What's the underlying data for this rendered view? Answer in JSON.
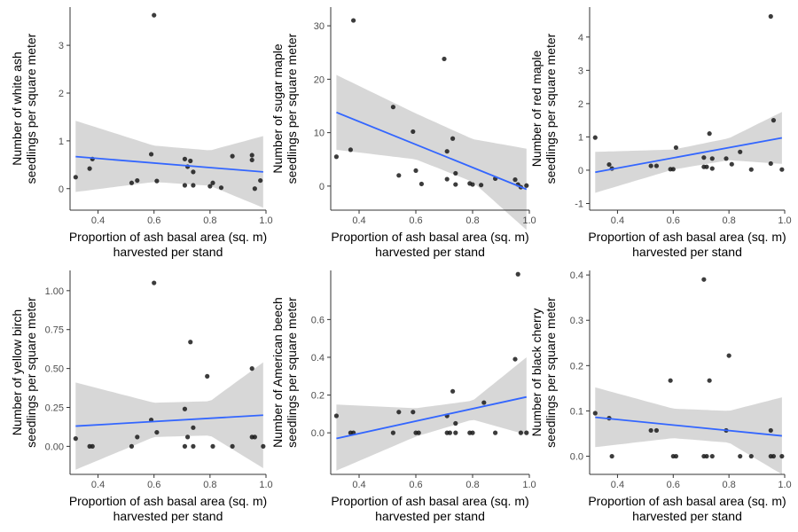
{
  "colors": {
    "point": "#1a1a1a",
    "line": "#3366ff",
    "band": "#d3d3d3",
    "axis": "#333333"
  },
  "shared": {
    "xlabel_line1": "Proportion of ash basal area (sq. m)",
    "xlabel_line2": "harvested per stand",
    "ylabel_line2": "seedlings per square meter"
  },
  "chart_data": [
    {
      "type": "scatter",
      "ylabel": "Number of white ash",
      "xlim": [
        0.3,
        1.0
      ],
      "ylim": [
        -0.45,
        3.8
      ],
      "xticks": [
        0.4,
        0.6,
        0.8,
        1.0
      ],
      "xtick_labels": [
        "0.4",
        "0.6",
        "0.8",
        "1.0"
      ],
      "yticks": [
        0,
        1,
        2,
        3
      ],
      "ytick_labels": [
        "0",
        "1",
        "2",
        "3"
      ],
      "points": [
        [
          0.32,
          0.24
        ],
        [
          0.37,
          0.42
        ],
        [
          0.38,
          0.62
        ],
        [
          0.52,
          0.12
        ],
        [
          0.54,
          0.17
        ],
        [
          0.59,
          0.72
        ],
        [
          0.6,
          3.63
        ],
        [
          0.61,
          0.16
        ],
        [
          0.71,
          0.62
        ],
        [
          0.71,
          0.07
        ],
        [
          0.72,
          0.46
        ],
        [
          0.73,
          0.58
        ],
        [
          0.74,
          0.35
        ],
        [
          0.74,
          0.07
        ],
        [
          0.8,
          0.05
        ],
        [
          0.81,
          0.12
        ],
        [
          0.84,
          0.02
        ],
        [
          0.88,
          0.68
        ],
        [
          0.95,
          0.7
        ],
        [
          0.95,
          0.6
        ],
        [
          0.96,
          0.0
        ],
        [
          0.98,
          0.17
        ]
      ],
      "fit": {
        "x": [
          0.32,
          0.99
        ],
        "y": [
          0.67,
          0.35
        ]
      },
      "band": {
        "x": [
          0.32,
          0.6,
          0.8,
          0.99
        ],
        "upper": [
          1.42,
          0.9,
          0.8,
          1.1
        ],
        "lower": [
          -0.07,
          0.14,
          0.06,
          -0.4
        ]
      }
    },
    {
      "type": "scatter",
      "ylabel": "Number of sugar maple",
      "xlim": [
        0.3,
        1.0
      ],
      "ylim": [
        -4.5,
        33.5
      ],
      "xticks": [
        0.4,
        0.6,
        0.8,
        1.0
      ],
      "xtick_labels": [
        "0.4",
        "0.6",
        "0.8",
        "1.0"
      ],
      "yticks": [
        0,
        10,
        20,
        30
      ],
      "ytick_labels": [
        "0",
        "10",
        "20",
        "30"
      ],
      "points": [
        [
          0.32,
          5.5
        ],
        [
          0.37,
          6.8
        ],
        [
          0.38,
          31.0
        ],
        [
          0.52,
          14.8
        ],
        [
          0.54,
          2.0
        ],
        [
          0.59,
          10.2
        ],
        [
          0.6,
          2.9
        ],
        [
          0.62,
          0.4
        ],
        [
          0.7,
          23.8
        ],
        [
          0.71,
          1.3
        ],
        [
          0.71,
          6.5
        ],
        [
          0.73,
          8.9
        ],
        [
          0.74,
          2.4
        ],
        [
          0.74,
          0.3
        ],
        [
          0.79,
          0.5
        ],
        [
          0.8,
          0.3
        ],
        [
          0.83,
          0.2
        ],
        [
          0.88,
          1.4
        ],
        [
          0.95,
          1.2
        ],
        [
          0.96,
          0.3
        ],
        [
          0.97,
          -0.2
        ],
        [
          0.99,
          0.1
        ]
      ],
      "fit": {
        "x": [
          0.32,
          0.99
        ],
        "y": [
          13.8,
          -0.6
        ]
      },
      "band": {
        "x": [
          0.32,
          0.6,
          0.8,
          0.99
        ],
        "upper": [
          20.8,
          13.6,
          8.8,
          7.0
        ],
        "lower": [
          6.8,
          5.0,
          0.8,
          -8.2
        ]
      }
    },
    {
      "type": "scatter",
      "ylabel": "Number of red maple",
      "xlim": [
        0.3,
        1.0
      ],
      "ylim": [
        -1.2,
        4.9
      ],
      "xticks": [
        0.4,
        0.6,
        0.8,
        1.0
      ],
      "xtick_labels": [
        "0.4",
        "0.6",
        "0.8",
        "1.0"
      ],
      "yticks": [
        -1,
        0,
        1,
        2,
        3,
        4
      ],
      "ytick_labels": [
        "-1",
        "0",
        "1",
        "2",
        "3",
        "4"
      ],
      "points": [
        [
          0.32,
          0.98
        ],
        [
          0.37,
          0.17
        ],
        [
          0.38,
          0.05
        ],
        [
          0.52,
          0.13
        ],
        [
          0.54,
          0.13
        ],
        [
          0.59,
          0.03
        ],
        [
          0.6,
          0.03
        ],
        [
          0.61,
          0.68
        ],
        [
          0.71,
          0.38
        ],
        [
          0.71,
          0.1
        ],
        [
          0.72,
          0.1
        ],
        [
          0.73,
          1.1
        ],
        [
          0.74,
          0.05
        ],
        [
          0.74,
          0.35
        ],
        [
          0.79,
          0.35
        ],
        [
          0.81,
          0.18
        ],
        [
          0.84,
          0.55
        ],
        [
          0.88,
          0.02
        ],
        [
          0.95,
          4.62
        ],
        [
          0.95,
          0.2
        ],
        [
          0.96,
          1.5
        ],
        [
          0.99,
          0.02
        ]
      ],
      "fit": {
        "x": [
          0.32,
          0.99
        ],
        "y": [
          -0.06,
          0.97
        ]
      },
      "band": {
        "x": [
          0.32,
          0.6,
          0.8,
          0.99
        ],
        "upper": [
          0.55,
          0.62,
          0.96,
          1.75
        ],
        "lower": [
          -0.68,
          0.02,
          0.3,
          0.19
        ]
      }
    },
    {
      "type": "scatter",
      "ylabel": "Number of yellow birch",
      "xlim": [
        0.3,
        1.0
      ],
      "ylim": [
        -0.18,
        1.13
      ],
      "xticks": [
        0.4,
        0.6,
        0.8,
        1.0
      ],
      "xtick_labels": [
        "0.4",
        "0.6",
        "0.8",
        "1.0"
      ],
      "yticks": [
        0,
        0.25,
        0.5,
        0.75,
        1.0
      ],
      "ytick_labels": [
        "0.00",
        "0.25",
        "0.50",
        "0.75",
        "1.00"
      ],
      "points": [
        [
          0.32,
          0.05
        ],
        [
          0.37,
          0.0
        ],
        [
          0.38,
          0.0
        ],
        [
          0.52,
          0.0
        ],
        [
          0.54,
          0.06
        ],
        [
          0.59,
          0.17
        ],
        [
          0.6,
          1.05
        ],
        [
          0.61,
          0.09
        ],
        [
          0.71,
          0.24
        ],
        [
          0.71,
          0.0
        ],
        [
          0.72,
          0.06
        ],
        [
          0.73,
          0.67
        ],
        [
          0.74,
          0.0
        ],
        [
          0.74,
          0.12
        ],
        [
          0.79,
          0.45
        ],
        [
          0.81,
          0.0
        ],
        [
          0.88,
          0.0
        ],
        [
          0.95,
          0.5
        ],
        [
          0.95,
          0.06
        ],
        [
          0.96,
          0.06
        ],
        [
          0.99,
          0.0
        ]
      ],
      "fit": {
        "x": [
          0.32,
          0.99
        ],
        "y": [
          0.13,
          0.2
        ]
      },
      "band": {
        "x": [
          0.32,
          0.6,
          0.8,
          0.99
        ],
        "upper": [
          0.41,
          0.28,
          0.29,
          0.54
        ],
        "lower": [
          -0.15,
          0.06,
          0.07,
          -0.14
        ]
      }
    },
    {
      "type": "scatter",
      "ylabel": "Number of American beech",
      "xlim": [
        0.3,
        1.0
      ],
      "ylim": [
        -0.22,
        0.86
      ],
      "xticks": [
        0.4,
        0.6,
        0.8,
        1.0
      ],
      "xtick_labels": [
        "0.4",
        "0.6",
        "0.8",
        "1.0"
      ],
      "yticks": [
        0,
        0.2,
        0.4,
        0.6
      ],
      "ytick_labels": [
        "0.0",
        "0.2",
        "0.4",
        "0.6"
      ],
      "points": [
        [
          0.32,
          0.09
        ],
        [
          0.37,
          0.0
        ],
        [
          0.38,
          0.0
        ],
        [
          0.52,
          0.0
        ],
        [
          0.54,
          0.11
        ],
        [
          0.59,
          0.11
        ],
        [
          0.6,
          0.0
        ],
        [
          0.61,
          0.0
        ],
        [
          0.71,
          0.09
        ],
        [
          0.71,
          0.0
        ],
        [
          0.72,
          0.0
        ],
        [
          0.73,
          0.22
        ],
        [
          0.74,
          0.0
        ],
        [
          0.74,
          0.05
        ],
        [
          0.79,
          0.0
        ],
        [
          0.8,
          0.0
        ],
        [
          0.84,
          0.16
        ],
        [
          0.88,
          0.0
        ],
        [
          0.95,
          0.39
        ],
        [
          0.96,
          0.84
        ],
        [
          0.97,
          0.0
        ],
        [
          0.99,
          0.0
        ]
      ],
      "fit": {
        "x": [
          0.32,
          0.99
        ],
        "y": [
          -0.03,
          0.19
        ]
      },
      "band": {
        "x": [
          0.32,
          0.6,
          0.8,
          0.99
        ],
        "upper": [
          0.15,
          0.13,
          0.17,
          0.4
        ],
        "lower": [
          -0.2,
          -0.02,
          0.07,
          -0.01
        ]
      }
    },
    {
      "type": "scatter",
      "ylabel": "Number of black cherry",
      "xlim": [
        0.3,
        1.0
      ],
      "ylim": [
        -0.04,
        0.41
      ],
      "xticks": [
        0.4,
        0.6,
        0.8,
        1.0
      ],
      "xtick_labels": [
        "0.4",
        "0.6",
        "0.8",
        "1.0"
      ],
      "yticks": [
        0,
        0.1,
        0.2,
        0.3,
        0.4
      ],
      "ytick_labels": [
        "0.0",
        "0.1",
        "0.2",
        "0.3",
        "0.4"
      ],
      "points": [
        [
          0.32,
          0.095
        ],
        [
          0.37,
          0.084
        ],
        [
          0.38,
          0.0
        ],
        [
          0.52,
          0.057
        ],
        [
          0.54,
          0.057
        ],
        [
          0.59,
          0.167
        ],
        [
          0.6,
          0.0
        ],
        [
          0.61,
          0.0
        ],
        [
          0.71,
          0.39
        ],
        [
          0.71,
          0.0
        ],
        [
          0.72,
          0.0
        ],
        [
          0.73,
          0.167
        ],
        [
          0.74,
          0.0
        ],
        [
          0.79,
          0.057
        ],
        [
          0.8,
          0.222
        ],
        [
          0.84,
          0.0
        ],
        [
          0.88,
          0.0
        ],
        [
          0.95,
          0.057
        ],
        [
          0.95,
          0.0
        ],
        [
          0.96,
          0.0
        ],
        [
          0.99,
          0.0
        ]
      ],
      "fit": {
        "x": [
          0.32,
          0.99
        ],
        "y": [
          0.086,
          0.045
        ]
      },
      "band": {
        "x": [
          0.32,
          0.6,
          0.8,
          0.99
        ],
        "upper": [
          0.152,
          0.105,
          0.1,
          0.13
        ],
        "lower": [
          0.02,
          0.04,
          0.03,
          -0.04
        ]
      }
    }
  ]
}
